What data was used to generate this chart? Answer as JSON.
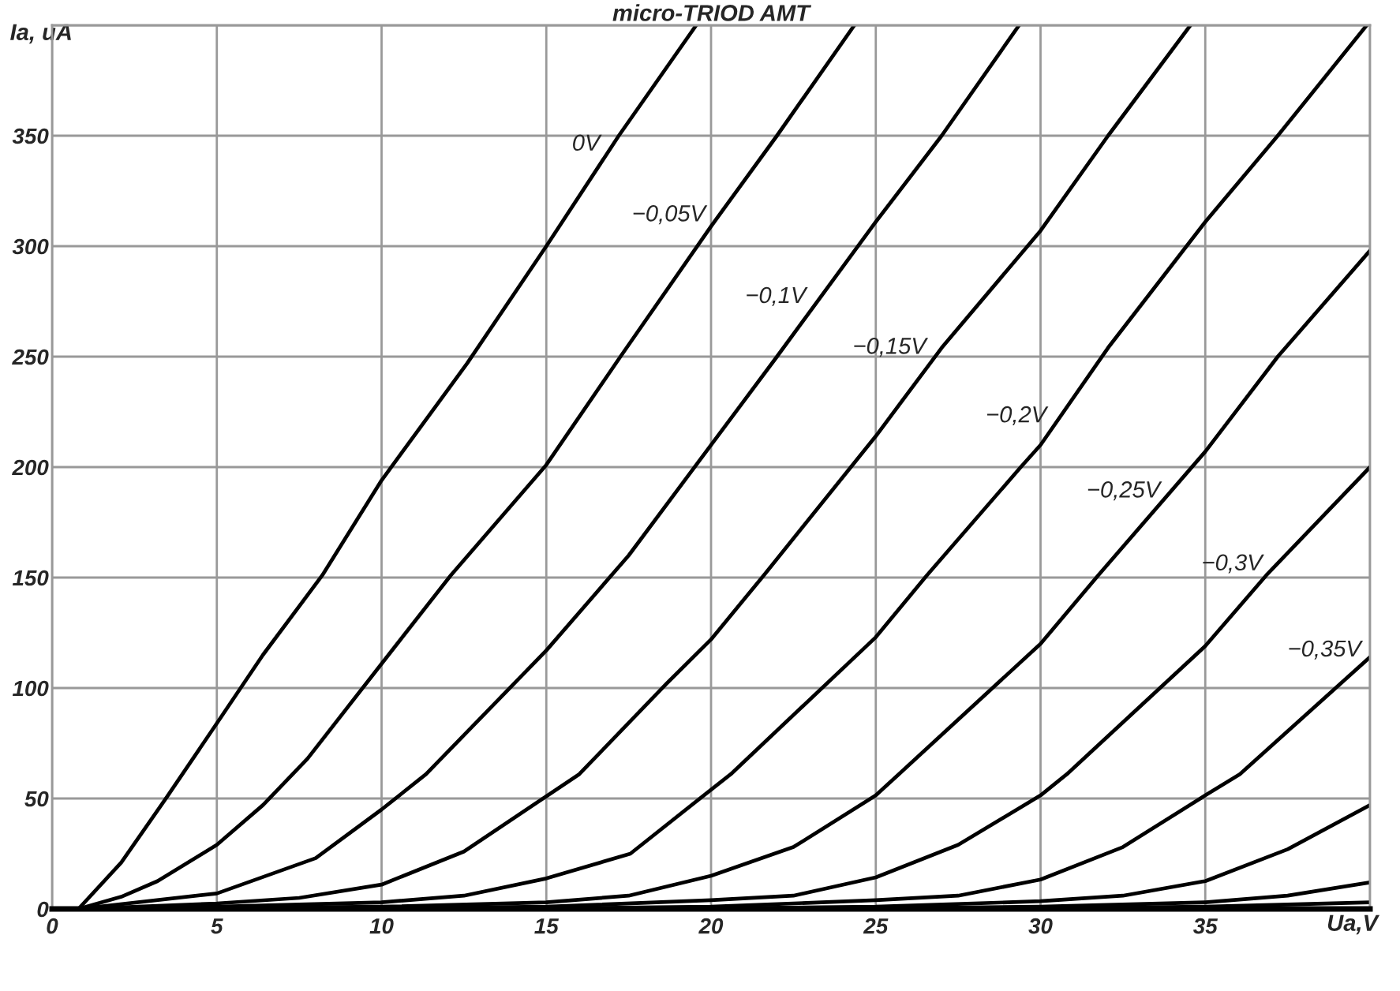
{
  "chart_data": {
    "type": "line",
    "title": "micro-TRIOD AMT",
    "xlabel": "Ua,V",
    "ylabel": "Ia, uA",
    "xlim": [
      0,
      40
    ],
    "ylim": [
      0,
      400
    ],
    "xticks": [
      0,
      5,
      10,
      15,
      20,
      25,
      30,
      35,
      {
        "value": 40,
        "label": null
      }
    ],
    "yticks": [
      0,
      50,
      100,
      150,
      200,
      250,
      300,
      350,
      {
        "value": 400,
        "label": null
      }
    ],
    "grid": true,
    "line_style": "solid",
    "series": [
      {
        "color": "#000000",
        "x": [
          0.8,
          2.1,
          3.5,
          5,
          6.4,
          8.2,
          10,
          12.6,
          15,
          17.2,
          19.55
        ],
        "values": [
          0,
          21,
          51,
          84,
          115,
          151,
          194,
          247,
          300,
          350,
          400
        ]
      },
      {
        "color": "#000000",
        "x": [
          0.8,
          2.1,
          3.2,
          5,
          6.4,
          7.75,
          10,
          12.1,
          15,
          17.25,
          20,
          22,
          24.35
        ],
        "values": [
          0,
          5.5,
          12.6,
          29,
          47,
          68,
          111,
          151,
          201,
          250,
          309,
          350,
          400
        ]
      },
      {
        "color": "#000000",
        "x": [
          0.8,
          5,
          8,
          10,
          11.35,
          15,
          17.5,
          19.6,
          22,
          25,
          27,
          29.35
        ],
        "values": [
          0,
          7,
          23,
          45,
          61,
          117,
          160,
          202,
          250,
          311,
          350,
          400
        ]
      },
      {
        "color": "#000000",
        "x": [
          0.8,
          5,
          7.5,
          10,
          12.5,
          15,
          16,
          18.65,
          20,
          21.6,
          25,
          27,
          30,
          32.05,
          34.55
        ],
        "values": [
          0,
          2.5,
          5,
          11,
          26,
          51,
          61,
          102,
          122,
          151,
          214,
          254,
          307,
          350,
          400
        ]
      },
      {
        "color": "#000000",
        "x": [
          0.8,
          5,
          10,
          12.5,
          15,
          17.55,
          20,
          20.6,
          25,
          26.55,
          29.4,
          30,
          32.05,
          35,
          37.2,
          39.9
        ],
        "values": [
          0,
          1,
          3,
          6,
          13.8,
          25,
          54,
          61,
          123,
          151,
          200,
          210,
          254,
          311,
          350,
          400
        ]
      },
      {
        "color": "#000000",
        "x": [
          0.8,
          10,
          15,
          17.5,
          20,
          22.5,
          25,
          25.7,
          30,
          31.75,
          35,
          37.2,
          40
        ],
        "values": [
          0,
          1,
          3,
          6,
          15,
          28,
          51.4,
          61,
          120,
          151,
          207,
          250,
          298
        ]
      },
      {
        "color": "#000000",
        "x": [
          0.8,
          10,
          15,
          20,
          22.5,
          25,
          27.5,
          30,
          30.8,
          35,
          36.85,
          40
        ],
        "values": [
          0,
          0.3,
          1,
          4,
          6,
          14.3,
          29,
          51.4,
          61,
          119,
          151,
          200
        ]
      },
      {
        "color": "#000000",
        "x": [
          0.8,
          15,
          20,
          25,
          27.5,
          30,
          32.5,
          35,
          36.05,
          40
        ],
        "values": [
          0,
          0.3,
          1,
          4,
          6,
          13.3,
          28,
          51.4,
          61,
          114
        ]
      },
      {
        "color": "#000000",
        "x": [
          0.8,
          20,
          25,
          30,
          32.5,
          35,
          37.5,
          40
        ],
        "values": [
          0,
          0.3,
          1,
          3.5,
          6,
          12.6,
          27,
          47
        ]
      },
      {
        "color": "#000000",
        "x": [
          0.8,
          25,
          30,
          35,
          37.5,
          40
        ],
        "values": [
          0,
          0.3,
          1,
          3,
          6,
          12
        ]
      },
      {
        "color": "#000000",
        "x": [
          0.8,
          30,
          35,
          40
        ],
        "values": [
          0,
          0.3,
          1,
          3
        ]
      }
    ],
    "annotations": [
      {
        "text": "0V",
        "x": 16.9,
        "y": 343
      },
      {
        "text": "−0,05V",
        "x": 20.1,
        "y": 311
      },
      {
        "text": "−0,1V",
        "x": 23.15,
        "y": 274
      },
      {
        "text": "−0,15V",
        "x": 26.8,
        "y": 251
      },
      {
        "text": "−0,2V",
        "x": 30.45,
        "y": 220
      },
      {
        "text": "−0,25V",
        "x": 33.9,
        "y": 186
      },
      {
        "text": "−0,3V",
        "x": 37,
        "y": 153
      },
      {
        "text": "−0,35V",
        "x": 40,
        "y": 114
      }
    ]
  }
}
